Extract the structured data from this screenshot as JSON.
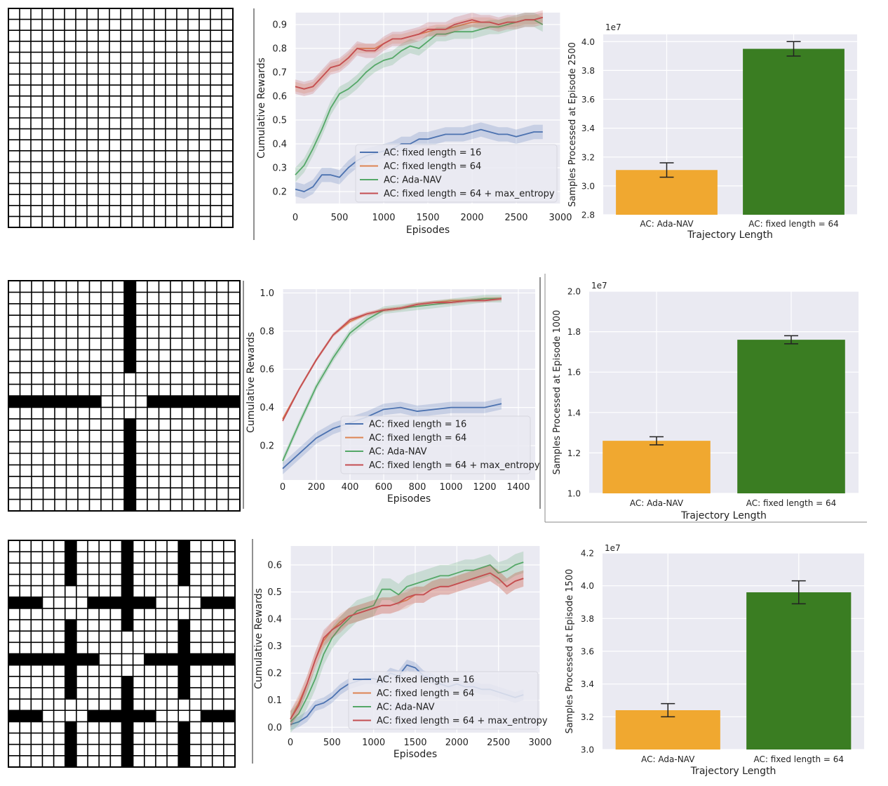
{
  "colors": {
    "panel_bg": "#eaeaf2",
    "grid": "#ffffff",
    "fixed16": "#4c72b0",
    "fixed64": "#dd8452",
    "adanav": "#55a868",
    "maxent": "#c44e52",
    "bar_ada": "#f0a830",
    "bar_fixed": "#3a7d22"
  },
  "chart_data": [
    {
      "type": "image",
      "name": "maze-1",
      "description_tag": "open-grid",
      "grid_cells": 20,
      "walls": []
    },
    {
      "type": "line",
      "name": "rewards-1",
      "xlabel": "Episodes",
      "ylabel": "Cumulative Rewards",
      "xlim": [
        0,
        3000
      ],
      "ylim": [
        0.15,
        0.95
      ],
      "xticks": [
        0,
        500,
        1000,
        1500,
        2000,
        2500,
        3000
      ],
      "xtick_labels": [
        "0",
        "500",
        "1000",
        "1500",
        "2000",
        "2500",
        "3000"
      ],
      "yticks": [
        0.2,
        0.3,
        0.4,
        0.5,
        0.6,
        0.7,
        0.8,
        0.9
      ],
      "ytick_labels": [
        "0.2",
        "0.3",
        "0.4",
        "0.5",
        "0.6",
        "0.7",
        "0.8",
        "0.9"
      ],
      "legend_position": "lower-right",
      "series": [
        {
          "key": "fixed16",
          "name": "AC: fixed length = 16",
          "x": [
            0,
            100,
            200,
            300,
            400,
            500,
            600,
            700,
            800,
            900,
            1000,
            1100,
            1200,
            1300,
            1400,
            1500,
            1600,
            1700,
            1800,
            1900,
            2000,
            2100,
            2200,
            2300,
            2400,
            2500,
            2600,
            2700,
            2800
          ],
          "y": [
            0.21,
            0.2,
            0.22,
            0.27,
            0.27,
            0.26,
            0.3,
            0.33,
            0.35,
            0.36,
            0.37,
            0.38,
            0.4,
            0.4,
            0.42,
            0.42,
            0.43,
            0.44,
            0.44,
            0.44,
            0.45,
            0.46,
            0.45,
            0.44,
            0.44,
            0.43,
            0.44,
            0.45,
            0.45
          ],
          "band": 0.03
        },
        {
          "key": "fixed64",
          "name": "AC: fixed length = 64",
          "x": [
            0,
            100,
            200,
            300,
            400,
            500,
            600,
            700,
            800,
            900,
            1000,
            1100,
            1200,
            1300,
            1400,
            1500,
            1600,
            1700,
            1800,
            1900,
            2000,
            2100,
            2200,
            2300,
            2400,
            2500,
            2600,
            2700,
            2800
          ],
          "y": [
            0.64,
            0.63,
            0.64,
            0.68,
            0.72,
            0.73,
            0.76,
            0.8,
            0.8,
            0.8,
            0.82,
            0.84,
            0.84,
            0.85,
            0.86,
            0.87,
            0.88,
            0.88,
            0.89,
            0.9,
            0.91,
            0.91,
            0.91,
            0.9,
            0.91,
            0.91,
            0.92,
            0.92,
            0.93
          ],
          "band": 0.02
        },
        {
          "key": "adanav",
          "name": "AC: Ada-NAV",
          "x": [
            0,
            100,
            200,
            300,
            400,
            500,
            600,
            700,
            800,
            900,
            1000,
            1100,
            1200,
            1300,
            1400,
            1500,
            1600,
            1700,
            1800,
            1900,
            2000,
            2100,
            2200,
            2300,
            2400,
            2500,
            2600,
            2700,
            2800
          ],
          "y": [
            0.27,
            0.31,
            0.38,
            0.46,
            0.55,
            0.61,
            0.63,
            0.66,
            0.7,
            0.73,
            0.75,
            0.76,
            0.79,
            0.81,
            0.8,
            0.83,
            0.86,
            0.86,
            0.87,
            0.87,
            0.87,
            0.88,
            0.89,
            0.89,
            0.9,
            0.91,
            0.92,
            0.92,
            0.9
          ],
          "band": 0.03
        },
        {
          "key": "maxent",
          "name": "AC: fixed length = 64 + max_entropy",
          "x": [
            0,
            100,
            200,
            300,
            400,
            500,
            600,
            700,
            800,
            900,
            1000,
            1100,
            1200,
            1300,
            1400,
            1500,
            1600,
            1700,
            1800,
            1900,
            2000,
            2100,
            2200,
            2300,
            2400,
            2500,
            2600,
            2700,
            2800
          ],
          "y": [
            0.64,
            0.63,
            0.64,
            0.68,
            0.72,
            0.73,
            0.76,
            0.8,
            0.79,
            0.79,
            0.82,
            0.84,
            0.84,
            0.85,
            0.86,
            0.88,
            0.88,
            0.88,
            0.9,
            0.91,
            0.92,
            0.91,
            0.91,
            0.9,
            0.91,
            0.91,
            0.92,
            0.92,
            0.93
          ],
          "band": 0.03
        }
      ]
    },
    {
      "type": "bar",
      "name": "samples-1",
      "categories": [
        "AC: Ada-NAV",
        "AC: fixed length = 64"
      ],
      "values": [
        3.11,
        3.95
      ],
      "errors": [
        0.05,
        0.05
      ],
      "exponent_label": "1e7",
      "xlabel": "Trajectory Length",
      "ylabel": "Samples Processed at Episode 2500",
      "ylim": [
        2.8,
        4.05
      ],
      "yticks": [
        2.8,
        3.0,
        3.2,
        3.4,
        3.6,
        3.8,
        4.0
      ],
      "ytick_labels": [
        "2.8",
        "3.0",
        "3.2",
        "3.4",
        "3.6",
        "3.8",
        "4.0"
      ],
      "bar_colors": [
        "bar_ada",
        "bar_fixed"
      ]
    },
    {
      "type": "image",
      "name": "maze-2",
      "description_tag": "cross-walls",
      "grid_cells": 20,
      "walls": [
        {
          "x": 10,
          "y": 0,
          "w": 1,
          "h": 8
        },
        {
          "x": 10,
          "y": 12,
          "w": 1,
          "h": 8
        },
        {
          "x": 0,
          "y": 10,
          "w": 8,
          "h": 1
        },
        {
          "x": 12,
          "y": 10,
          "w": 8,
          "h": 1
        }
      ]
    },
    {
      "type": "line",
      "name": "rewards-2",
      "xlabel": "Episodes",
      "ylabel": "Cumulative Rewards",
      "xlim": [
        0,
        1500
      ],
      "ylim": [
        0.02,
        1.02
      ],
      "xticks": [
        0,
        200,
        400,
        600,
        800,
        1000,
        1200,
        1400
      ],
      "xtick_labels": [
        "0",
        "200",
        "400",
        "600",
        "800",
        "1000",
        "1200",
        "1400"
      ],
      "yticks": [
        0.2,
        0.4,
        0.6,
        0.8,
        1.0
      ],
      "ytick_labels": [
        "0.2",
        "0.4",
        "0.6",
        "0.8",
        "1.0"
      ],
      "legend_position": "lower-right",
      "series": [
        {
          "key": "fixed16",
          "name": "AC: fixed length = 16",
          "x": [
            0,
            100,
            200,
            300,
            400,
            500,
            600,
            700,
            800,
            900,
            1000,
            1100,
            1200,
            1300
          ],
          "y": [
            0.08,
            0.16,
            0.24,
            0.29,
            0.32,
            0.35,
            0.39,
            0.4,
            0.38,
            0.39,
            0.4,
            0.4,
            0.4,
            0.42
          ],
          "band": 0.03
        },
        {
          "key": "fixed64",
          "name": "AC: fixed length = 64",
          "x": [
            0,
            100,
            200,
            300,
            400,
            500,
            600,
            700,
            800,
            900,
            1000,
            1100,
            1200,
            1300
          ],
          "y": [
            0.34,
            0.5,
            0.65,
            0.78,
            0.85,
            0.89,
            0.91,
            0.92,
            0.94,
            0.95,
            0.96,
            0.96,
            0.97,
            0.97
          ],
          "band": 0.01
        },
        {
          "key": "adanav",
          "name": "AC: Ada-NAV",
          "x": [
            0,
            100,
            200,
            300,
            400,
            500,
            600,
            700,
            800,
            900,
            1000,
            1100,
            1200,
            1300
          ],
          "y": [
            0.12,
            0.32,
            0.51,
            0.66,
            0.79,
            0.86,
            0.91,
            0.92,
            0.93,
            0.94,
            0.95,
            0.96,
            0.97,
            0.97
          ],
          "band": 0.02
        },
        {
          "key": "maxent",
          "name": "AC: fixed length = 64 + max_entropy",
          "x": [
            0,
            100,
            200,
            300,
            400,
            500,
            600,
            700,
            800,
            900,
            1000,
            1100,
            1200,
            1300
          ],
          "y": [
            0.33,
            0.5,
            0.65,
            0.78,
            0.86,
            0.89,
            0.91,
            0.92,
            0.94,
            0.95,
            0.95,
            0.96,
            0.96,
            0.97
          ],
          "band": 0.01
        }
      ]
    },
    {
      "type": "bar",
      "name": "samples-2",
      "categories": [
        "AC: Ada-NAV",
        "AC: fixed length = 64"
      ],
      "values": [
        1.26,
        1.76
      ],
      "errors": [
        0.02,
        0.02
      ],
      "exponent_label": "1e7",
      "xlabel": "Trajectory Length",
      "ylabel": "Samples Processed at Episode 1000",
      "ylim": [
        1.0,
        2.0
      ],
      "yticks": [
        1.0,
        1.2,
        1.4,
        1.6,
        1.8,
        2.0
      ],
      "ytick_labels": [
        "1.0",
        "1.2",
        "1.4",
        "1.6",
        "1.8",
        "2.0"
      ],
      "bar_colors": [
        "bar_ada",
        "bar_fixed"
      ]
    },
    {
      "type": "image",
      "name": "maze-3",
      "description_tag": "multi-room",
      "grid_cells": 20,
      "walls": [
        {
          "x": 5,
          "y": 0,
          "w": 1,
          "h": 4
        },
        {
          "x": 10,
          "y": 0,
          "w": 1,
          "h": 8
        },
        {
          "x": 15,
          "y": 0,
          "w": 1,
          "h": 4
        },
        {
          "x": 0,
          "y": 5,
          "w": 3,
          "h": 1
        },
        {
          "x": 7,
          "y": 5,
          "w": 6,
          "h": 1
        },
        {
          "x": 17,
          "y": 5,
          "w": 3,
          "h": 1
        },
        {
          "x": 5,
          "y": 7,
          "w": 1,
          "h": 7
        },
        {
          "x": 15,
          "y": 7,
          "w": 1,
          "h": 7
        },
        {
          "x": 0,
          "y": 10,
          "w": 8,
          "h": 1
        },
        {
          "x": 12,
          "y": 10,
          "w": 8,
          "h": 1
        },
        {
          "x": 10,
          "y": 12,
          "w": 1,
          "h": 8
        },
        {
          "x": 0,
          "y": 15,
          "w": 3,
          "h": 1
        },
        {
          "x": 7,
          "y": 15,
          "w": 6,
          "h": 1
        },
        {
          "x": 17,
          "y": 15,
          "w": 3,
          "h": 1
        },
        {
          "x": 5,
          "y": 16,
          "w": 1,
          "h": 4
        },
        {
          "x": 15,
          "y": 16,
          "w": 1,
          "h": 4
        }
      ]
    },
    {
      "type": "line",
      "name": "rewards-3",
      "xlabel": "Episodes",
      "ylabel": "Cumulative Rewards",
      "xlim": [
        0,
        3000
      ],
      "ylim": [
        -0.02,
        0.67
      ],
      "xticks": [
        0,
        500,
        1000,
        1500,
        2000,
        2500,
        3000
      ],
      "xtick_labels": [
        "0",
        "500",
        "1000",
        "1500",
        "2000",
        "2500",
        "3000"
      ],
      "yticks": [
        0.0,
        0.1,
        0.2,
        0.3,
        0.4,
        0.5,
        0.6
      ],
      "ytick_labels": [
        "0.0",
        "0.1",
        "0.2",
        "0.3",
        "0.4",
        "0.5",
        "0.6"
      ],
      "legend_position": "lower-right",
      "series": [
        {
          "key": "fixed16",
          "name": "AC: fixed length = 16",
          "x": [
            0,
            100,
            200,
            300,
            400,
            500,
            600,
            700,
            800,
            900,
            1000,
            1100,
            1200,
            1300,
            1400,
            1500,
            1600,
            1700,
            1800,
            1900,
            2000,
            2100,
            2200,
            2300,
            2400,
            2500,
            2600,
            2700,
            2800
          ],
          "y": [
            0.01,
            0.02,
            0.04,
            0.08,
            0.09,
            0.11,
            0.14,
            0.16,
            0.17,
            0.18,
            0.18,
            0.17,
            0.2,
            0.19,
            0.23,
            0.22,
            0.19,
            0.18,
            0.16,
            0.15,
            0.16,
            0.15,
            0.15,
            0.14,
            0.14,
            0.13,
            0.12,
            0.11,
            0.12
          ],
          "band": 0.02
        },
        {
          "key": "fixed64",
          "name": "AC: fixed length = 64",
          "x": [
            0,
            100,
            200,
            300,
            400,
            500,
            600,
            700,
            800,
            900,
            1000,
            1100,
            1200,
            1300,
            1400,
            1500,
            1600,
            1700,
            1800,
            1900,
            2000,
            2100,
            2200,
            2300,
            2400,
            2500,
            2600,
            2700,
            2800
          ],
          "y": [
            0.03,
            0.09,
            0.16,
            0.25,
            0.32,
            0.36,
            0.39,
            0.41,
            0.42,
            0.43,
            0.44,
            0.45,
            0.45,
            0.46,
            0.47,
            0.49,
            0.49,
            0.51,
            0.52,
            0.52,
            0.53,
            0.54,
            0.55,
            0.56,
            0.57,
            0.55,
            0.52,
            0.54,
            0.55
          ],
          "band": 0.03
        },
        {
          "key": "adanav",
          "name": "AC: Ada-NAV",
          "x": [
            0,
            100,
            200,
            300,
            400,
            500,
            600,
            700,
            800,
            900,
            1000,
            1100,
            1200,
            1300,
            1400,
            1500,
            1600,
            1700,
            1800,
            1900,
            2000,
            2100,
            2200,
            2300,
            2400,
            2500,
            2600,
            2700,
            2800
          ],
          "y": [
            0.02,
            0.05,
            0.11,
            0.18,
            0.27,
            0.33,
            0.37,
            0.4,
            0.43,
            0.44,
            0.45,
            0.51,
            0.51,
            0.49,
            0.52,
            0.53,
            0.54,
            0.55,
            0.56,
            0.56,
            0.57,
            0.58,
            0.58,
            0.59,
            0.6,
            0.57,
            0.58,
            0.6,
            0.61
          ],
          "band": 0.04
        },
        {
          "key": "maxent",
          "name": "AC: fixed length = 64 + max_entropy",
          "x": [
            0,
            100,
            200,
            300,
            400,
            500,
            600,
            700,
            800,
            900,
            1000,
            1100,
            1200,
            1300,
            1400,
            1500,
            1600,
            1700,
            1800,
            1900,
            2000,
            2100,
            2200,
            2300,
            2400,
            2500,
            2600,
            2700,
            2800
          ],
          "y": [
            0.03,
            0.08,
            0.16,
            0.25,
            0.33,
            0.36,
            0.38,
            0.41,
            0.42,
            0.43,
            0.44,
            0.45,
            0.45,
            0.46,
            0.48,
            0.49,
            0.49,
            0.51,
            0.52,
            0.52,
            0.53,
            0.54,
            0.55,
            0.56,
            0.57,
            0.55,
            0.52,
            0.54,
            0.55
          ],
          "band": 0.03
        }
      ]
    },
    {
      "type": "bar",
      "name": "samples-3",
      "categories": [
        "AC: Ada-NAV",
        "AC: fixed length = 64"
      ],
      "values": [
        3.24,
        3.96
      ],
      "errors": [
        0.04,
        0.07
      ],
      "exponent_label": "1e7",
      "xlabel": "Trajectory Length",
      "ylabel": "Samples Processed at Episode 1500",
      "ylim": [
        3.0,
        4.2
      ],
      "yticks": [
        3.0,
        3.2,
        3.4,
        3.6,
        3.8,
        4.0,
        4.2
      ],
      "ytick_labels": [
        "3.0",
        "3.2",
        "3.4",
        "3.6",
        "3.8",
        "4.0",
        "4.2"
      ],
      "bar_colors": [
        "bar_ada",
        "bar_fixed"
      ]
    }
  ]
}
